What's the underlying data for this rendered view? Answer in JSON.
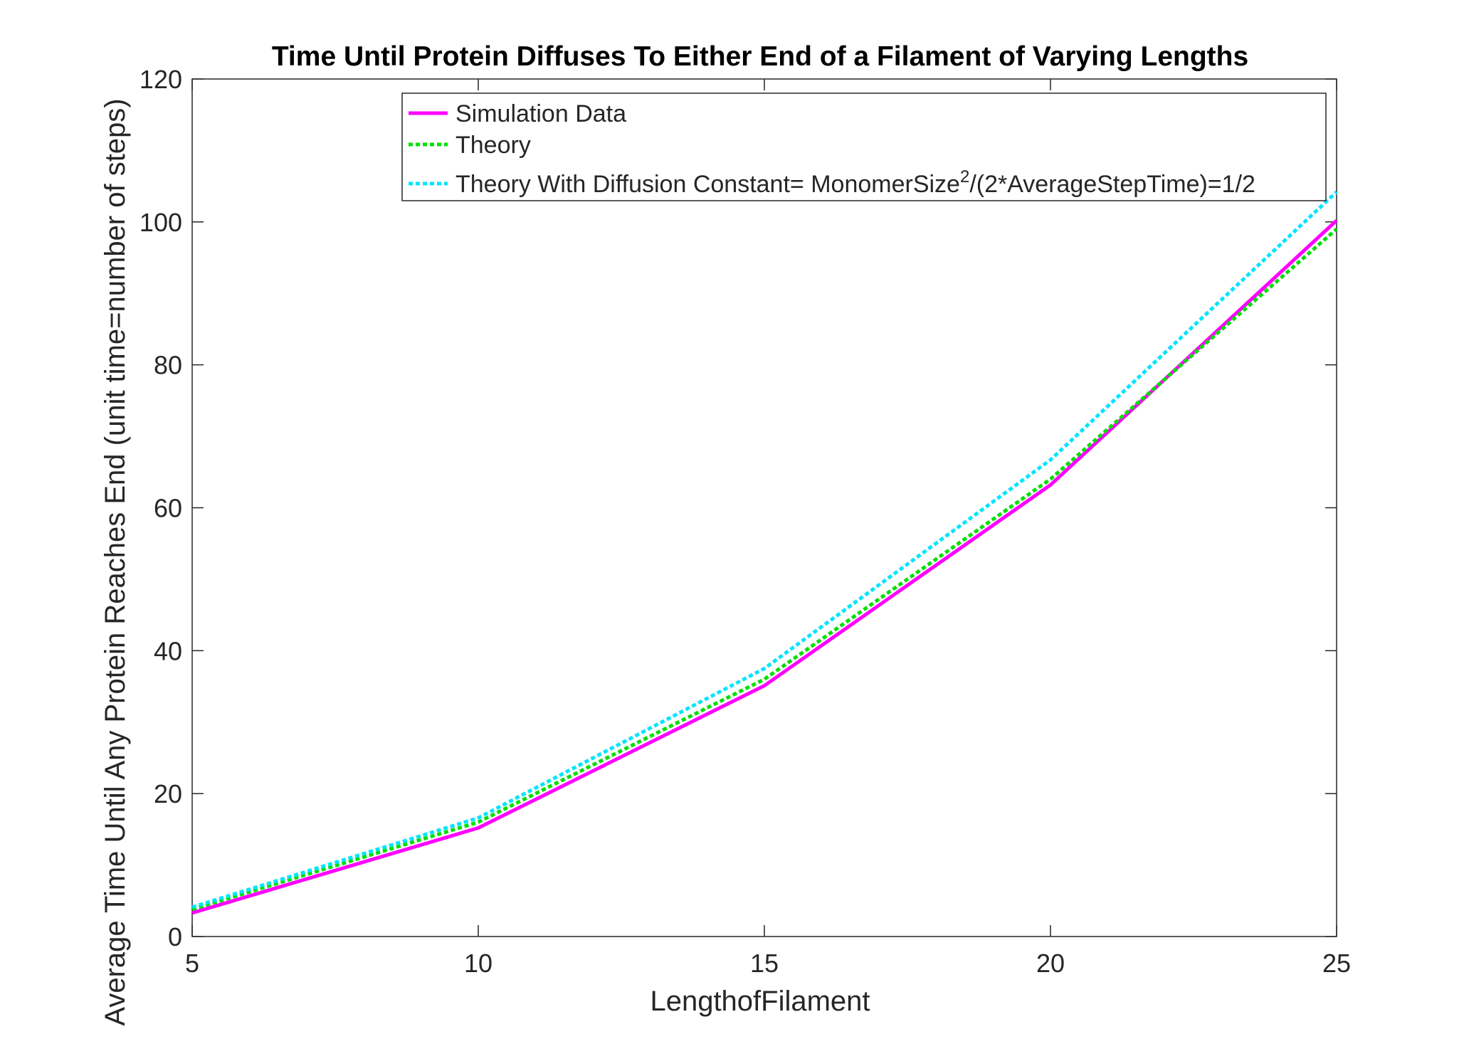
{
  "chart_data": {
    "type": "line",
    "title": "Time Until Protein Diffuses To Either End of a Filament of Varying Lengths",
    "xlabel": "LengthofFilament",
    "ylabel": "Average Time Until Any Protein Reaches End (unit time=number of steps)",
    "xlim": [
      5,
      25
    ],
    "ylim": [
      0,
      120
    ],
    "xticks": [
      5,
      10,
      15,
      20,
      25
    ],
    "yticks": [
      0,
      20,
      40,
      60,
      80,
      100,
      120
    ],
    "grid": false,
    "legend_position": "top-right",
    "x": [
      5,
      10,
      15,
      20,
      25
    ],
    "series": [
      {
        "name": "Simulation Data",
        "values": [
          3.3,
          15.2,
          35.1,
          63.2,
          100.2
        ],
        "color": "#ff00ff",
        "dash": "solid"
      },
      {
        "name": "Theory",
        "values": [
          3.8,
          16.0,
          36.0,
          64.0,
          99.0
        ],
        "color": "#00e000",
        "dash": "dotted"
      },
      {
        "name": "Theory With Diffusion Constant= MonomerSize",
        "name_sup": "2",
        "name_suffix": "/(2*AverageStepTime)=1/2",
        "values": [
          4.1,
          16.6,
          37.5,
          66.7,
          104.2
        ],
        "color": "#00e5ff",
        "dash": "dotted"
      }
    ]
  }
}
